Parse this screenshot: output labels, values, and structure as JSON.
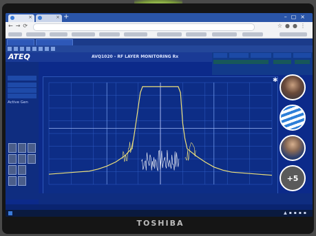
{
  "app": {
    "brand": "ATEQ",
    "title": "AVQ1020 - RF LAYER MONITORING Rx",
    "left_panel": {
      "active_label": "Active Gen"
    }
  },
  "bezel": {
    "brand": "TOSHIBA"
  },
  "meeting": {
    "more_participants": "+5"
  },
  "colors": {
    "screen_bg": "#0c2a8a",
    "trace": "#f0e27a",
    "trace_noise": "#ffffff",
    "grid": "#2f5cc4",
    "readout_green": "#3cf06a"
  },
  "chart_data": {
    "type": "line",
    "title": "",
    "xlabel": "",
    "ylabel": "",
    "xlim": [
      0,
      100
    ],
    "ylim": [
      0,
      100
    ],
    "grid": true,
    "series": [
      {
        "x": [
          0,
          6,
          12,
          18,
          22,
          26,
          30,
          34,
          37,
          38,
          39,
          41,
          42,
          44,
          46,
          48,
          50,
          52,
          54,
          56,
          58,
          59,
          60,
          61,
          62,
          66,
          70,
          74,
          78,
          82,
          88,
          94,
          100
        ],
        "values": [
          10,
          11,
          12,
          13,
          15,
          18,
          22,
          28,
          35,
          45,
          60,
          90,
          96,
          96,
          96,
          96,
          96,
          96,
          96,
          96,
          96,
          90,
          60,
          45,
          35,
          28,
          22,
          17,
          14,
          12,
          11,
          10,
          9
        ]
      }
    ]
  }
}
